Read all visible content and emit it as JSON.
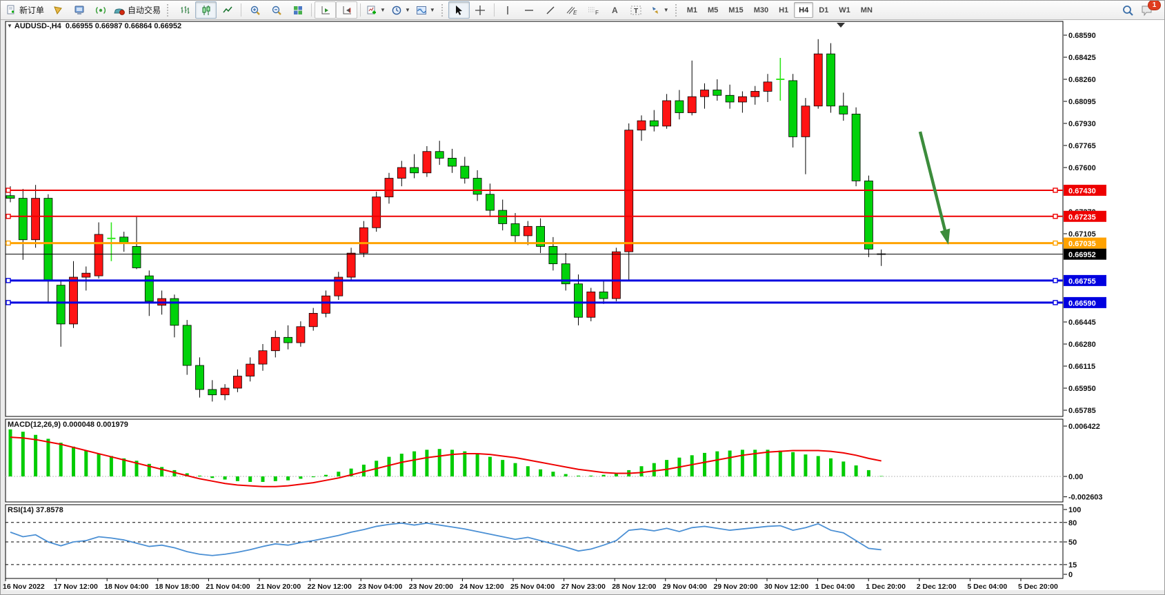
{
  "toolbar": {
    "new_order": "新订单",
    "auto_trading": "自动交易",
    "badge_count": "1",
    "icon_letters": {
      "text": "A",
      "label": "T",
      "grid": "F",
      "fibo": "ƒ"
    }
  },
  "timeframes": {
    "items": [
      "M1",
      "M5",
      "M15",
      "M30",
      "H1",
      "H4",
      "D1",
      "W1",
      "MN"
    ],
    "active": "H4"
  },
  "chart": {
    "symbol_label": "AUDUSD-,H4",
    "ohlc_label": "0.66955 0.66987 0.66864 0.66952",
    "macd_label": "MACD(12,26,9) 0.000048 0.001979",
    "rsi_label": "RSI(14) 37.8578"
  },
  "chart_data": {
    "type": "candlestick-with-indicators",
    "symbol": "AUDUSD-",
    "period": "H4",
    "bull_color": "#ff1414",
    "bear_color": "#00d20a",
    "price_axis_ticks": [
      "0.68590",
      "0.68425",
      "0.68260",
      "0.68095",
      "0.67930",
      "0.67765",
      "0.67600",
      "0.67435",
      "0.67270",
      "0.67105",
      "0.66940",
      "0.66775",
      "0.66610",
      "0.66445",
      "0.66280",
      "0.66115",
      "0.65950",
      "0.65785"
    ],
    "date_labels": [
      "16 Nov 2022",
      "17 Nov 12:00",
      "18 Nov 04:00",
      "18 Nov 18:00",
      "21 Nov 04:00",
      "21 Nov 20:00",
      "22 Nov 12:00",
      "23 Nov 04:00",
      "23 Nov 20:00",
      "24 Nov 12:00",
      "25 Nov 04:00",
      "27 Nov 23:00",
      "28 Nov 12:00",
      "29 Nov 04:00",
      "29 Nov 20:00",
      "30 Nov 12:00",
      "1 Dec 04:00",
      "1 Dec 20:00",
      "2 Dec 12:00",
      "5 Dec 04:00",
      "5 Dec 20:00"
    ],
    "hlines": [
      {
        "price": 0.6743,
        "label": "0.67430",
        "color": "#ee0000",
        "width": 2,
        "handles": true
      },
      {
        "price": 0.67235,
        "label": "0.67235",
        "color": "#ee0000",
        "width": 2,
        "handles": true
      },
      {
        "price": 0.67035,
        "label": "0.67035",
        "color": "#ffa200",
        "width": 3,
        "handles": true
      },
      {
        "price": 0.66952,
        "label": "0.66952",
        "color": "#000000",
        "width": 1,
        "handles": false
      },
      {
        "price": 0.66755,
        "label": "0.66755",
        "color": "#0000e0",
        "width": 3,
        "handles": true
      },
      {
        "price": 0.6659,
        "label": "0.66590",
        "color": "#0000e0",
        "width": 3,
        "handles": true
      }
    ],
    "bars": [
      [
        0.6739,
        0.6746,
        0.6734,
        0.6737
      ],
      [
        0.6737,
        0.6744,
        0.6691,
        0.6706
      ],
      [
        0.6706,
        0.6747,
        0.67,
        0.6737
      ],
      [
        0.6737,
        0.674,
        0.6659,
        0.6676
      ],
      [
        0.6672,
        0.6675,
        0.6626,
        0.6643
      ],
      [
        0.6643,
        0.669,
        0.664,
        0.6678
      ],
      [
        0.6678,
        0.6686,
        0.6668,
        0.6681
      ],
      [
        0.6679,
        0.6719,
        0.6677,
        0.671
      ],
      [
        0.6707,
        0.6719,
        0.669,
        0.6707
      ],
      [
        0.6708,
        0.6712,
        0.6697,
        0.6703
      ],
      [
        0.6701,
        0.6723,
        0.6684,
        0.6685
      ],
      [
        0.6679,
        0.6683,
        0.6649,
        0.666
      ],
      [
        0.6657,
        0.6668,
        0.665,
        0.6662
      ],
      [
        0.6662,
        0.6665,
        0.6633,
        0.6642
      ],
      [
        0.6642,
        0.6646,
        0.6605,
        0.6612
      ],
      [
        0.6612,
        0.6618,
        0.6588,
        0.6594
      ],
      [
        0.6594,
        0.6601,
        0.6585,
        0.659
      ],
      [
        0.659,
        0.6598,
        0.6586,
        0.6595
      ],
      [
        0.6595,
        0.6609,
        0.6592,
        0.6604
      ],
      [
        0.6604,
        0.6618,
        0.66,
        0.6613
      ],
      [
        0.6613,
        0.6628,
        0.6608,
        0.6623
      ],
      [
        0.6623,
        0.6638,
        0.6618,
        0.6633
      ],
      [
        0.6633,
        0.6642,
        0.6624,
        0.6629
      ],
      [
        0.6629,
        0.6645,
        0.6626,
        0.6641
      ],
      [
        0.6641,
        0.6655,
        0.6638,
        0.6651
      ],
      [
        0.6651,
        0.6668,
        0.6648,
        0.6664
      ],
      [
        0.6664,
        0.6682,
        0.6661,
        0.6678
      ],
      [
        0.6678,
        0.67,
        0.6675,
        0.6696
      ],
      [
        0.6696,
        0.672,
        0.6693,
        0.6715
      ],
      [
        0.6715,
        0.6742,
        0.6712,
        0.6738
      ],
      [
        0.6738,
        0.6756,
        0.6733,
        0.6752
      ],
      [
        0.6752,
        0.6765,
        0.6746,
        0.676
      ],
      [
        0.676,
        0.677,
        0.6752,
        0.6756
      ],
      [
        0.6756,
        0.6776,
        0.6753,
        0.6772
      ],
      [
        0.6772,
        0.678,
        0.6762,
        0.6767
      ],
      [
        0.6767,
        0.6774,
        0.6756,
        0.6761
      ],
      [
        0.6761,
        0.6768,
        0.6748,
        0.6752
      ],
      [
        0.6752,
        0.6758,
        0.6735,
        0.674
      ],
      [
        0.674,
        0.6748,
        0.6723,
        0.6728
      ],
      [
        0.6728,
        0.6736,
        0.6713,
        0.6718
      ],
      [
        0.6718,
        0.6726,
        0.6704,
        0.6709
      ],
      [
        0.6709,
        0.672,
        0.6702,
        0.6716
      ],
      [
        0.6716,
        0.6722,
        0.6696,
        0.6701
      ],
      [
        0.6701,
        0.6708,
        0.6683,
        0.6688
      ],
      [
        0.6688,
        0.6696,
        0.6668,
        0.6673
      ],
      [
        0.6673,
        0.668,
        0.6642,
        0.6648
      ],
      [
        0.6648,
        0.667,
        0.6645,
        0.6667
      ],
      [
        0.6667,
        0.6676,
        0.6658,
        0.6662
      ],
      [
        0.6662,
        0.67,
        0.666,
        0.6697
      ],
      [
        0.6697,
        0.6793,
        0.6676,
        0.6788
      ],
      [
        0.6788,
        0.6799,
        0.678,
        0.6795
      ],
      [
        0.6795,
        0.6803,
        0.6787,
        0.6791
      ],
      [
        0.6791,
        0.6815,
        0.6789,
        0.681
      ],
      [
        0.681,
        0.6818,
        0.6796,
        0.6801
      ],
      [
        0.6801,
        0.684,
        0.6799,
        0.6813
      ],
      [
        0.6813,
        0.6823,
        0.6804,
        0.6818
      ],
      [
        0.6818,
        0.6826,
        0.681,
        0.6814
      ],
      [
        0.6814,
        0.6822,
        0.6804,
        0.6809
      ],
      [
        0.6809,
        0.6817,
        0.6801,
        0.6813
      ],
      [
        0.6813,
        0.6821,
        0.6807,
        0.6817
      ],
      [
        0.6817,
        0.683,
        0.6809,
        0.6824
      ],
      [
        0.6826,
        0.6842,
        0.681,
        0.6826
      ],
      [
        0.6825,
        0.683,
        0.6775,
        0.6783
      ],
      [
        0.6783,
        0.6812,
        0.6755,
        0.6806
      ],
      [
        0.6806,
        0.6856,
        0.6804,
        0.6845
      ],
      [
        0.6845,
        0.6853,
        0.6801,
        0.6806
      ],
      [
        0.6806,
        0.6816,
        0.6795,
        0.68
      ],
      [
        0.68,
        0.6805,
        0.6746,
        0.675
      ],
      [
        0.675,
        0.6754,
        0.6693,
        0.6699
      ],
      [
        0.66955,
        0.66987,
        0.66864,
        0.66952
      ]
    ],
    "macd": {
      "label": "MACD(12,26,9)",
      "value": 4.8e-05,
      "signal_value": 0.001979,
      "axis": [
        {
          "label": "0.006422",
          "v": 0.006422
        },
        {
          "label": "0.00",
          "v": 0
        },
        {
          "label": "-0.002603",
          "v": -0.002603
        }
      ],
      "hist_color": "#00cc00",
      "signal_color": "#ee0000",
      "hist": [
        0.006,
        0.0057,
        0.0053,
        0.0048,
        0.0043,
        0.0038,
        0.0033,
        0.0029,
        0.0026,
        0.0023,
        0.002,
        0.0016,
        0.0012,
        0.0008,
        0.0004,
        0.0001,
        -0.0002,
        -0.0004,
        -0.0006,
        -0.0007,
        -0.0007,
        -0.0006,
        -0.0005,
        -0.0003,
        -0.0001,
        0.0002,
        0.0006,
        0.001,
        0.0015,
        0.002,
        0.0025,
        0.0029,
        0.0032,
        0.0034,
        0.0035,
        0.0034,
        0.0032,
        0.0029,
        0.0025,
        0.0021,
        0.0017,
        0.0013,
        0.0009,
        0.0006,
        0.0003,
        0.0001,
        0.0001,
        0.0002,
        0.0004,
        0.0008,
        0.0013,
        0.0017,
        0.0021,
        0.0024,
        0.0027,
        0.003,
        0.0032,
        0.0033,
        0.0034,
        0.0034,
        0.0034,
        0.0033,
        0.0031,
        0.0028,
        0.0026,
        0.0023,
        0.0019,
        0.0014,
        0.0008,
        4.8e-05
      ],
      "signal": [
        0.005,
        0.0049,
        0.0047,
        0.0044,
        0.0041,
        0.0037,
        0.0033,
        0.0029,
        0.0025,
        0.0021,
        0.0017,
        0.0013,
        0.0009,
        0.0005,
        0.0001,
        -0.0003,
        -0.0006,
        -0.0009,
        -0.0011,
        -0.0012,
        -0.0013,
        -0.0013,
        -0.0012,
        -0.001,
        -0.0008,
        -0.0005,
        -0.0002,
        0.0002,
        0.0006,
        0.001,
        0.0014,
        0.0018,
        0.0021,
        0.0024,
        0.0026,
        0.0028,
        0.0029,
        0.0029,
        0.0028,
        0.0026,
        0.0024,
        0.0021,
        0.0018,
        0.0015,
        0.0012,
        0.0009,
        0.0007,
        0.0005,
        0.0004,
        0.0004,
        0.0005,
        0.0007,
        0.0009,
        0.0012,
        0.0015,
        0.0018,
        0.0021,
        0.0024,
        0.0027,
        0.0029,
        0.0031,
        0.0032,
        0.0033,
        0.0033,
        0.0033,
        0.0032,
        0.003,
        0.0027,
        0.0023,
        0.001979
      ]
    },
    "rsi": {
      "label": "RSI(14)",
      "value": 37.8578,
      "color": "#4a8fd4",
      "axis": [
        {
          "label": "100",
          "v": 100,
          "dashed": false
        },
        {
          "label": "80",
          "v": 80,
          "dashed": true
        },
        {
          "label": "50",
          "v": 50,
          "dashed": true
        },
        {
          "label": "15",
          "v": 15,
          "dashed": true
        },
        {
          "label": "0",
          "v": 0,
          "dashed": false
        }
      ],
      "values": [
        65,
        58,
        61,
        50,
        44,
        50,
        52,
        58,
        56,
        53,
        48,
        43,
        45,
        41,
        35,
        31,
        29,
        31,
        34,
        38,
        43,
        47,
        45,
        49,
        52,
        56,
        60,
        65,
        69,
        74,
        77,
        79,
        76,
        79,
        76,
        73,
        70,
        66,
        62,
        58,
        54,
        57,
        52,
        47,
        42,
        36,
        39,
        45,
        52,
        68,
        70,
        67,
        71,
        66,
        72,
        74,
        71,
        68,
        70,
        72,
        74,
        75,
        68,
        72,
        78,
        68,
        64,
        52,
        40,
        37.8578
      ]
    },
    "annotation_arrow": {
      "type": "arrow",
      "direction": "down-right",
      "color": "#3c8c3c"
    }
  }
}
